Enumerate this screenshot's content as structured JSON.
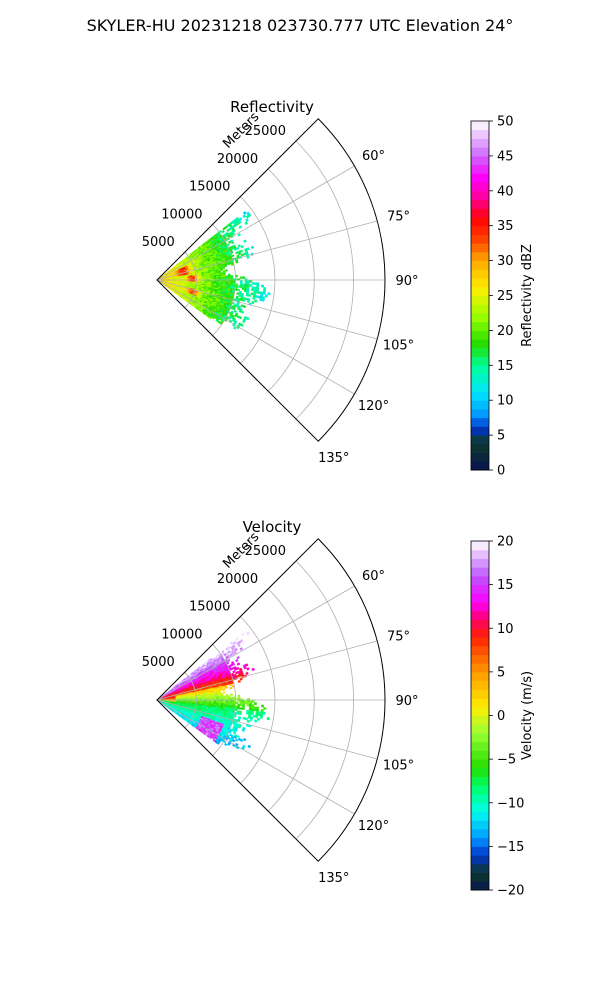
{
  "figure": {
    "title": "SKYLER-HU  20231218  023730.777 UTC Elevation 24°"
  },
  "chart_data": [
    {
      "type": "polar-sector",
      "title": "Reflectivity",
      "r_label": "Meters",
      "r_ticks": [
        "5000",
        "10000",
        "15000",
        "20000",
        "25000"
      ],
      "r_max": 29000,
      "theta_range_deg": [
        45,
        135
      ],
      "theta_ticks": [
        "60°",
        "75°",
        "90°",
        "105°",
        "120°",
        "135°"
      ],
      "grid": true,
      "colorbar": {
        "label": "Reflectivity dBZ",
        "range": [
          0,
          50
        ],
        "ticks": [
          "0",
          "5",
          "10",
          "15",
          "20",
          "25",
          "30",
          "35",
          "40",
          "45",
          "50"
        ],
        "stops": [
          [
            0,
            "#0a1450"
          ],
          [
            4,
            "#0d3a2a"
          ],
          [
            6,
            "#0033cc"
          ],
          [
            8,
            "#0099ff"
          ],
          [
            11,
            "#00e5ff"
          ],
          [
            15,
            "#00ff99"
          ],
          [
            18,
            "#22dd00"
          ],
          [
            22,
            "#99ff00"
          ],
          [
            26,
            "#ffee00"
          ],
          [
            30,
            "#ffaa00"
          ],
          [
            33,
            "#ff4400"
          ],
          [
            36,
            "#ff0000"
          ],
          [
            39,
            "#ff0099"
          ],
          [
            42,
            "#ff00ff"
          ],
          [
            45,
            "#cc66ff"
          ],
          [
            50,
            "#ffffff"
          ]
        ]
      },
      "echo": {
        "r_min": 0,
        "r_max": 14500,
        "theta_min_deg": 52,
        "theta_max_deg": 126
      }
    },
    {
      "type": "polar-sector",
      "title": "Velocity",
      "r_label": "Meters",
      "r_ticks": [
        "5000",
        "10000",
        "15000",
        "20000",
        "25000"
      ],
      "r_max": 29000,
      "theta_range_deg": [
        45,
        135
      ],
      "theta_ticks": [
        "60°",
        "75°",
        "90°",
        "105°",
        "120°",
        "135°"
      ],
      "grid": true,
      "colorbar": {
        "label": "Velocity (m/s)",
        "range": [
          -20,
          20
        ],
        "ticks": [
          "−20",
          "−15",
          "−10",
          "−5",
          "0",
          "5",
          "10",
          "15",
          "20"
        ],
        "stops": [
          [
            -20,
            "#0a1450"
          ],
          [
            -18,
            "#0d3a2a"
          ],
          [
            -16,
            "#0033cc"
          ],
          [
            -14,
            "#0099ff"
          ],
          [
            -11,
            "#00ffee"
          ],
          [
            -8,
            "#00ff66"
          ],
          [
            -6,
            "#22dd00"
          ],
          [
            -2,
            "#99ff33"
          ],
          [
            1,
            "#ffee00"
          ],
          [
            5,
            "#ff9900"
          ],
          [
            9,
            "#ff2200"
          ],
          [
            11,
            "#ff0066"
          ],
          [
            13,
            "#ff00ff"
          ],
          [
            16,
            "#bb55ff"
          ],
          [
            20,
            "#ffffff"
          ]
        ]
      },
      "echo": {
        "r_min": 0,
        "r_max": 14500,
        "theta_min_deg": 52,
        "theta_max_deg": 126
      }
    }
  ]
}
